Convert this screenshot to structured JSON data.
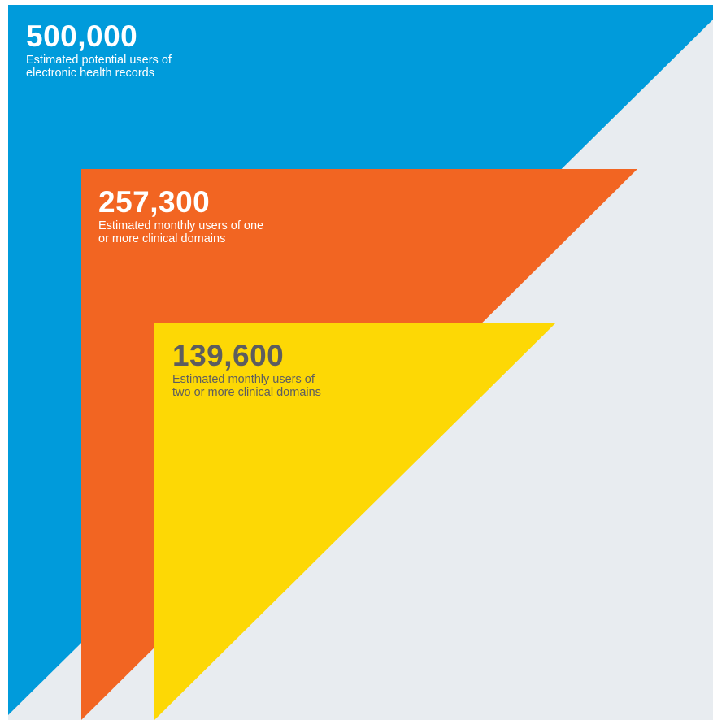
{
  "colors": {
    "background": "#e8ecf0",
    "frame": "#ffffff",
    "total": "#009bdb",
    "one_or_more": "#f26522",
    "two_or_more": "#fdd805",
    "dark_text": "#5d5d5f",
    "light_text": "#ffffff"
  },
  "levels": [
    {
      "value": "500,000",
      "description": "Estimated potential users of electronic health records",
      "description_lines": [
        "Estimated potential users of",
        "electronic health records"
      ],
      "color": "#009bdb"
    },
    {
      "value": "257,300",
      "description": "Estimated monthly users of one or more clinical domains",
      "description_lines": [
        "Estimated monthly users of one",
        "or more clinical domains"
      ],
      "color": "#f26522"
    },
    {
      "value": "139,600",
      "description": "Estimated monthly users of two or more clinical domains",
      "description_lines": [
        "Estimated monthly users of",
        "two or more clinical domains"
      ],
      "color": "#fdd805"
    }
  ]
}
